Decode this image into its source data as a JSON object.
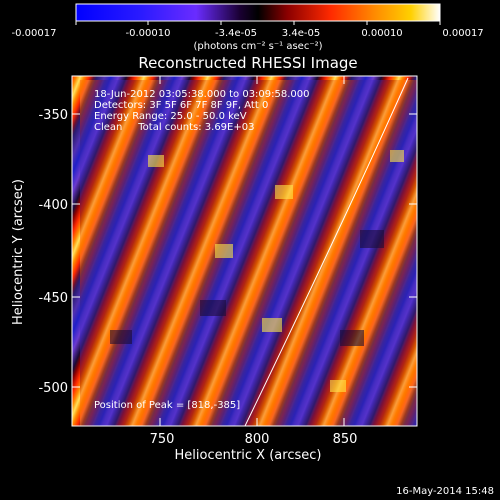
{
  "colorbar": {
    "tick_labels": [
      "-0.00017",
      "-0.00010",
      "-3.4e-05",
      "3.4e-05",
      "0.00010",
      "0.00017"
    ],
    "unit_label": "(photons cm⁻² s⁻¹ asec⁻²)"
  },
  "title": "Reconstructed RHESSI Image",
  "annotations": {
    "time": "18-Jun-2012 03:05:38.000 to 03:09:58.000",
    "detectors": "Detectors: 3F 5F 6F 7F 8F 9F, Att 0",
    "energy": "Energy Range: 25.0 - 50.0 keV",
    "clean": "Clean     Total counts: 3.69E+03",
    "peak": "Position of Peak = [818,-385]"
  },
  "axes": {
    "xlabel": "Heliocentric X (arcsec)",
    "ylabel": "Heliocentric Y (arcsec)",
    "x_ticks": [
      "750",
      "800",
      "850"
    ],
    "y_ticks": [
      "-350",
      "-400",
      "-450",
      "-500"
    ]
  },
  "footer": {
    "date": "16-May-2014 15:48"
  }
}
